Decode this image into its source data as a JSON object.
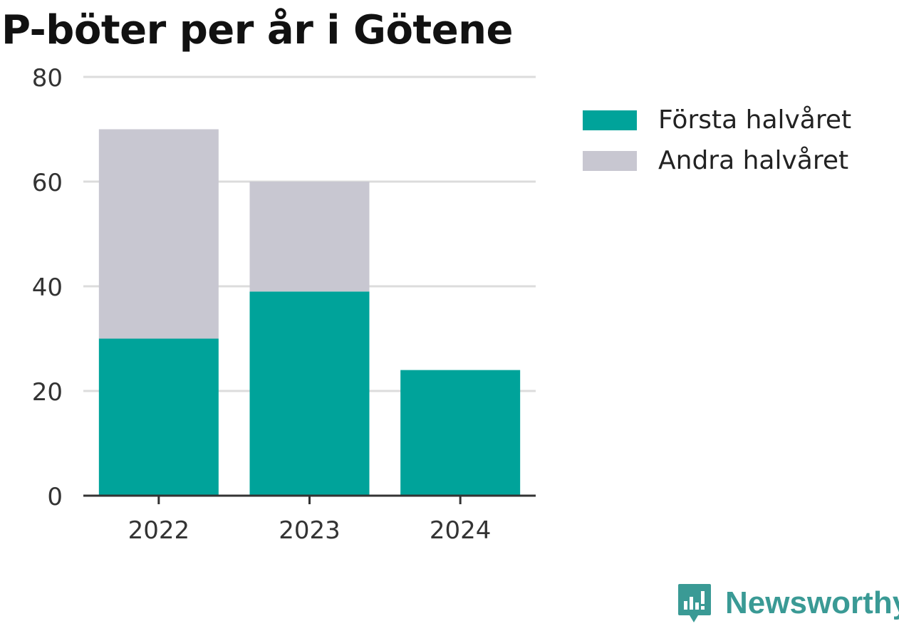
{
  "chart_data": {
    "type": "bar",
    "stacked": true,
    "title": "P-böter per år i Götene",
    "xlabel": "",
    "ylabel": "",
    "categories": [
      "2022",
      "2023",
      "2024"
    ],
    "series": [
      {
        "name": "Första halvåret",
        "values": [
          30,
          39,
          24
        ],
        "color": "#00a39a"
      },
      {
        "name": "Andra halvåret",
        "values": [
          40,
          21,
          0
        ],
        "color": "#c8c7d1"
      }
    ],
    "ylim": [
      0,
      80
    ],
    "yticks": [
      "0",
      "20",
      "40",
      "60",
      "80"
    ],
    "grid": true,
    "legend_position": "top-right"
  },
  "brand": {
    "name": "Newsworthy",
    "icon": "newsworthy-logo-icon",
    "color": "#3a9a95"
  }
}
